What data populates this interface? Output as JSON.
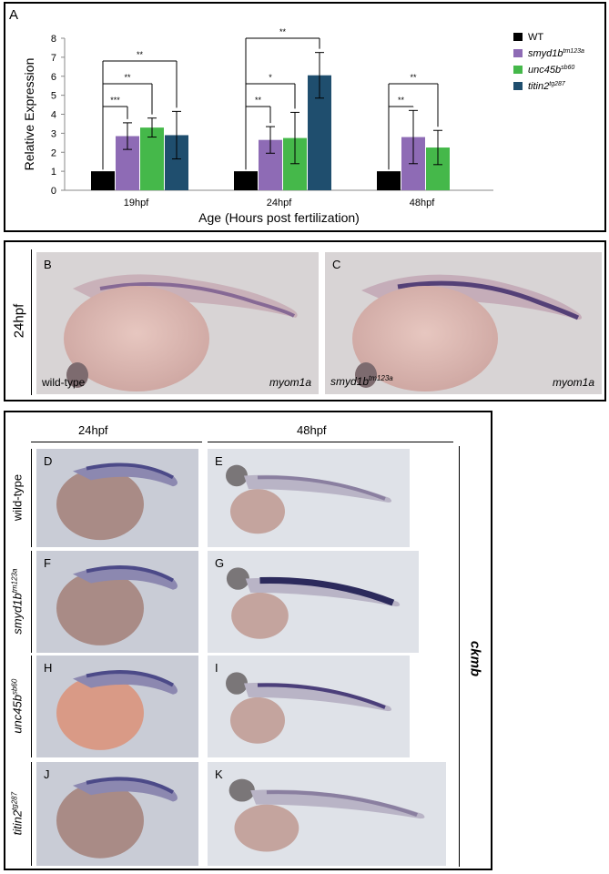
{
  "panel_a": {
    "label": "A",
    "chart_data": {
      "type": "bar",
      "categories": [
        "19hpf",
        "24hpf",
        "48hpf"
      ],
      "series": [
        {
          "name": "WT",
          "values": [
            1.0,
            1.0,
            1.0
          ],
          "errors": [
            0.0,
            0.0,
            0.0
          ],
          "color": "#000000"
        },
        {
          "name": "smyd1b",
          "sup": "tm123a",
          "values": [
            2.85,
            2.65,
            2.8
          ],
          "errors": [
            0.7,
            0.7,
            1.4
          ],
          "color": "#8e6bb5"
        },
        {
          "name": "unc45b",
          "sup": "sb60",
          "values": [
            3.3,
            2.75,
            2.25
          ],
          "errors": [
            0.5,
            1.35,
            0.9
          ],
          "color": "#45b84a"
        },
        {
          "name": "titin2",
          "sup": "tg287",
          "values": [
            2.9,
            6.05,
            null
          ],
          "errors": [
            1.25,
            1.2,
            null
          ],
          "color": "#1f4e6e"
        }
      ],
      "xlabel": "Age (Hours post fertilization)",
      "ylabel": "Relative Expression",
      "ylim": [
        0,
        8
      ],
      "yticks": [
        "0",
        "1",
        "2",
        "3",
        "4",
        "5",
        "6",
        "7",
        "8"
      ],
      "significance": [
        {
          "group": 0,
          "series": 1,
          "label": "***"
        },
        {
          "group": 0,
          "series": 2,
          "label": "**"
        },
        {
          "group": 0,
          "series": 3,
          "label": "**"
        },
        {
          "group": 1,
          "series": 1,
          "label": "**"
        },
        {
          "group": 1,
          "series": 2,
          "label": "*"
        },
        {
          "group": 1,
          "series": 3,
          "label": "**"
        },
        {
          "group": 2,
          "series": 1,
          "label": "**"
        },
        {
          "group": 2,
          "series": 2,
          "label": "**"
        }
      ],
      "legend_position": "top-right"
    }
  },
  "panel_bc": {
    "row_label": "24hpf",
    "b": {
      "letter": "B",
      "genotype": "wild-type",
      "probe": "myom1a"
    },
    "c": {
      "letter": "C",
      "genotype": "smyd1b",
      "genotype_sup": "tm123a",
      "probe": "myom1a"
    }
  },
  "panel_dk": {
    "col_headers": [
      "24hpf",
      "48hpf"
    ],
    "probe": "ckmb",
    "rows": [
      {
        "name": "wild-type",
        "sup": "",
        "left": "D",
        "right": "E"
      },
      {
        "name": "smyd1b",
        "sup": "tm123a",
        "left": "F",
        "right": "G"
      },
      {
        "name": "unc45b",
        "sup": "sb60",
        "left": "H",
        "right": "I"
      },
      {
        "name": "titin2",
        "sup": "tg287",
        "left": "J",
        "right": "K"
      }
    ]
  }
}
